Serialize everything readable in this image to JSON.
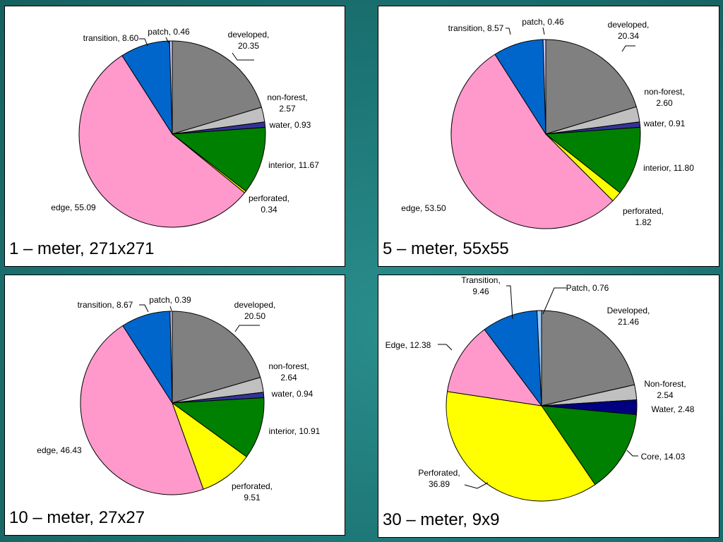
{
  "chart_data": [
    {
      "type": "pie",
      "title": "1 – meter, 271x271",
      "slices": [
        {
          "name": "developed",
          "value": 20.35,
          "color": "#808080"
        },
        {
          "name": "non-forest",
          "value": 2.57,
          "color": "#c0c0c0"
        },
        {
          "name": "water",
          "value": 0.93,
          "color": "#333399"
        },
        {
          "name": "interior",
          "value": 11.67,
          "color": "#008000"
        },
        {
          "name": "perforated",
          "value": 0.34,
          "color": "#ffff00"
        },
        {
          "name": "edge",
          "value": 55.09,
          "color": "#ff99cc"
        },
        {
          "name": "transition",
          "value": 8.6,
          "color": "#0066cc"
        },
        {
          "name": "patch",
          "value": 0.46,
          "color": "#ccccff"
        }
      ],
      "labels": [
        {
          "lines": [
            "developed,",
            "20.35"
          ]
        },
        {
          "lines": [
            "non-forest,",
            "2.57"
          ]
        },
        {
          "lines": [
            "water, 0.93"
          ]
        },
        {
          "lines": [
            "interior, 11.67"
          ]
        },
        {
          "lines": [
            "perforated,",
            "0.34"
          ]
        },
        {
          "lines": [
            "edge, 55.09"
          ]
        },
        {
          "lines": [
            "transition, 8.60"
          ]
        },
        {
          "lines": [
            "patch, 0.46"
          ]
        }
      ]
    },
    {
      "type": "pie",
      "title": "5 – meter, 55x55",
      "slices": [
        {
          "name": "developed",
          "value": 20.34,
          "color": "#808080"
        },
        {
          "name": "non-forest",
          "value": 2.6,
          "color": "#c0c0c0"
        },
        {
          "name": "water",
          "value": 0.91,
          "color": "#333399"
        },
        {
          "name": "interior",
          "value": 11.8,
          "color": "#008000"
        },
        {
          "name": "perforated",
          "value": 1.82,
          "color": "#ffff00"
        },
        {
          "name": "edge",
          "value": 53.5,
          "color": "#ff99cc"
        },
        {
          "name": "transition",
          "value": 8.57,
          "color": "#0066cc"
        },
        {
          "name": "patch",
          "value": 0.46,
          "color": "#ccccff"
        }
      ],
      "labels": [
        {
          "lines": [
            "developed,",
            "20.34"
          ]
        },
        {
          "lines": [
            "non-forest,",
            "2.60"
          ]
        },
        {
          "lines": [
            "water, 0.91"
          ]
        },
        {
          "lines": [
            "interior, 11.80"
          ]
        },
        {
          "lines": [
            "perforated,",
            "1.82"
          ]
        },
        {
          "lines": [
            "edge, 53.50"
          ]
        },
        {
          "lines": [
            "transition, 8.57"
          ]
        },
        {
          "lines": [
            "patch, 0.46"
          ]
        }
      ]
    },
    {
      "type": "pie",
      "title": "10 – meter, 27x27",
      "slices": [
        {
          "name": "developed",
          "value": 20.5,
          "color": "#808080"
        },
        {
          "name": "non-forest",
          "value": 2.64,
          "color": "#c0c0c0"
        },
        {
          "name": "water",
          "value": 0.94,
          "color": "#333399"
        },
        {
          "name": "interior",
          "value": 10.91,
          "color": "#008000"
        },
        {
          "name": "perforated",
          "value": 9.51,
          "color": "#ffff00"
        },
        {
          "name": "edge",
          "value": 46.43,
          "color": "#ff99cc"
        },
        {
          "name": "transition",
          "value": 8.67,
          "color": "#0066cc"
        },
        {
          "name": "patch",
          "value": 0.39,
          "color": "#ccccff"
        }
      ],
      "labels": [
        {
          "lines": [
            "developed,",
            "20.50"
          ]
        },
        {
          "lines": [
            "non-forest,",
            "2.64"
          ]
        },
        {
          "lines": [
            "water, 0.94"
          ]
        },
        {
          "lines": [
            "interior, 10.91"
          ]
        },
        {
          "lines": [
            "perforated,",
            "9.51"
          ]
        },
        {
          "lines": [
            "edge, 46.43"
          ]
        },
        {
          "lines": [
            "transition, 8.67"
          ]
        },
        {
          "lines": [
            "patch, 0.39"
          ]
        }
      ]
    },
    {
      "type": "pie",
      "title": "30 – meter, 9x9",
      "slices": [
        {
          "name": "Developed",
          "value": 21.46,
          "color": "#808080"
        },
        {
          "name": "Non-forest",
          "value": 2.54,
          "color": "#c0c0c0"
        },
        {
          "name": "Water",
          "value": 2.48,
          "color": "#000080"
        },
        {
          "name": "Core",
          "value": 14.03,
          "color": "#008000"
        },
        {
          "name": "Perforated",
          "value": 36.89,
          "color": "#ffff00"
        },
        {
          "name": "Edge",
          "value": 12.38,
          "color": "#ff99cc"
        },
        {
          "name": "Transition",
          "value": 9.46,
          "color": "#0066cc"
        },
        {
          "name": "Patch",
          "value": 0.76,
          "color": "#99ccff"
        }
      ],
      "labels": [
        {
          "lines": [
            "Developed,",
            "21.46"
          ]
        },
        {
          "lines": [
            "Non-forest,",
            "2.54"
          ]
        },
        {
          "lines": [
            "Water, 2.48"
          ]
        },
        {
          "lines": [
            "Core, 14.03"
          ]
        },
        {
          "lines": [
            "Perforated,",
            "36.89"
          ]
        },
        {
          "lines": [
            "Edge, 12.38"
          ]
        },
        {
          "lines": [
            "Transition,",
            "9.46"
          ]
        },
        {
          "lines": [
            "Patch, 0.76"
          ]
        }
      ]
    }
  ]
}
